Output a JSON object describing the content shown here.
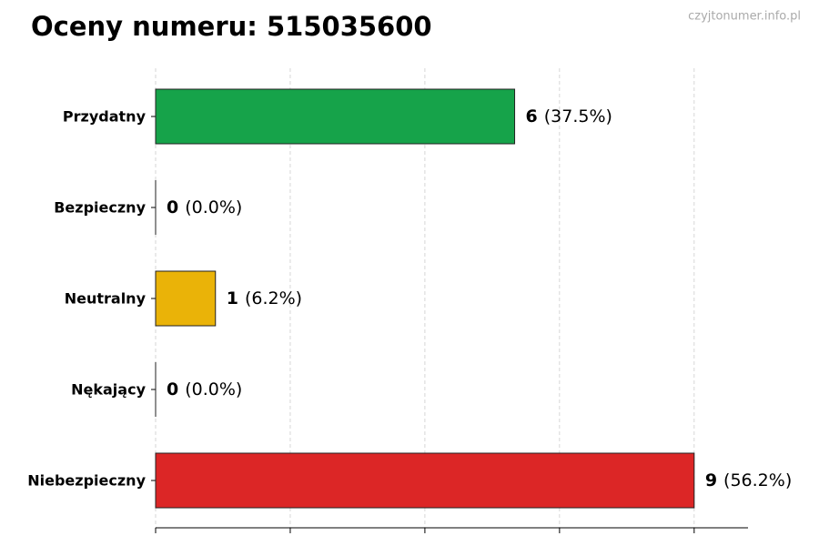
{
  "chart_data": {
    "type": "barh",
    "title": "Oceny numeru: 515035600",
    "watermark": "czyjtonumer.info.pl",
    "categories": [
      "Przydatny",
      "Bezpieczny",
      "Neutralny",
      "Nękający",
      "Niebezpieczny"
    ],
    "values": [
      6,
      0,
      1,
      0,
      9
    ],
    "percent_labels": [
      "(37.5%)",
      "(0.0%)",
      "(6.2%)",
      "(0.0%)",
      "(56.2%)"
    ],
    "colors": [
      "#16a34a",
      "#15803d",
      "#eab308",
      "#b91c1c",
      "#dc2626"
    ],
    "xlim": [
      0,
      9.9
    ],
    "xticks": [
      0,
      2.25,
      4.5,
      6.75,
      9
    ],
    "grid": true
  }
}
